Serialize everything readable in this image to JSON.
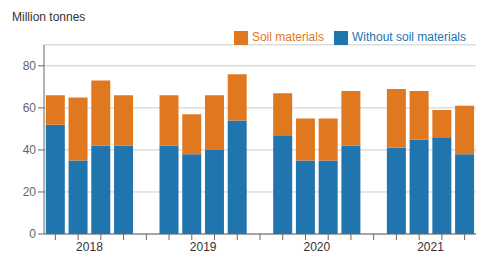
{
  "chart_data": {
    "type": "bar",
    "stacked": true,
    "ylabel": "Million tonnes",
    "categories": [
      "2018",
      null,
      null,
      null,
      "2019",
      null,
      null,
      null,
      "2020",
      null,
      null,
      null,
      "2021",
      null,
      null,
      null
    ],
    "series": [
      {
        "name": "Without soil materials",
        "color": "#2175ae",
        "values": [
          52,
          35,
          42,
          42,
          42,
          38,
          40,
          54,
          47,
          35,
          35,
          42,
          41,
          45,
          46,
          38
        ]
      },
      {
        "name": "Soil materials",
        "color": "#e07820",
        "values": [
          14,
          30,
          31,
          24,
          24,
          19,
          26,
          22,
          20,
          20,
          20,
          26,
          28,
          23,
          13,
          23
        ]
      }
    ],
    "ylim": [
      0,
      90
    ],
    "yticks": [
      0,
      20,
      40,
      60,
      80
    ],
    "grid": true,
    "legend": "upper right"
  }
}
